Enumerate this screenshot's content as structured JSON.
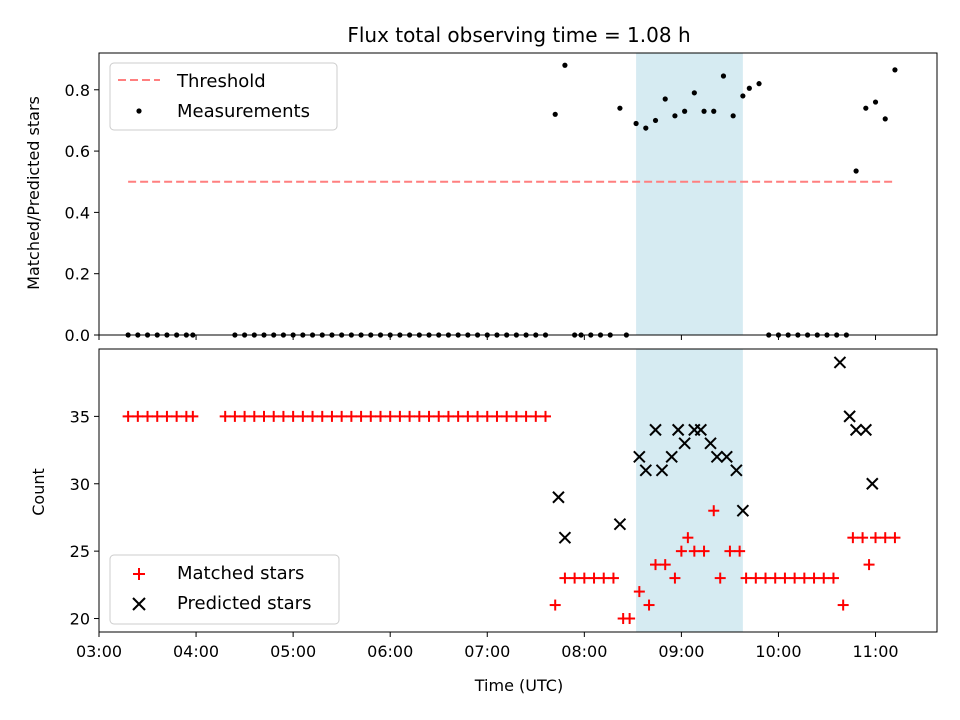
{
  "title": "Flux total observing time = 1.08 h",
  "colors": {
    "threshold": "#ff7f7f",
    "band": "#add8e6",
    "matched": "#ff0000",
    "predicted": "#000000",
    "measurement": "#000000"
  },
  "chart_data": [
    {
      "type": "scatter",
      "ylabel": "Matched/Predicted stars",
      "xlim": [
        "03:00",
        "11:38"
      ],
      "ylim": [
        0,
        0.92
      ],
      "yticks": [
        0.0,
        0.2,
        0.4,
        0.6,
        0.8
      ],
      "ytick_labels": [
        "0.0",
        "0.2",
        "0.4",
        "0.6",
        "0.8"
      ],
      "highlight_band": [
        "08:32",
        "09:38"
      ],
      "legend": {
        "position": "top-left",
        "entries": [
          "Threshold",
          "Measurements"
        ]
      },
      "series": [
        {
          "name": "Threshold",
          "style": "dashed-line",
          "x": [
            "03:18",
            "11:11"
          ],
          "values": [
            0.5,
            0.5
          ]
        },
        {
          "name": "Measurements",
          "style": "dot",
          "x": [
            "03:18",
            "03:24",
            "03:30",
            "03:36",
            "03:42",
            "03:48",
            "03:54",
            "03:58",
            "04:24",
            "04:30",
            "04:36",
            "04:42",
            "04:48",
            "04:54",
            "05:00",
            "05:06",
            "05:12",
            "05:18",
            "05:24",
            "05:30",
            "05:36",
            "05:42",
            "05:48",
            "05:54",
            "06:00",
            "06:06",
            "06:12",
            "06:18",
            "06:24",
            "06:30",
            "06:36",
            "06:42",
            "06:48",
            "06:54",
            "07:00",
            "07:06",
            "07:12",
            "07:18",
            "07:24",
            "07:30",
            "07:36",
            "07:42",
            "07:48",
            "07:54",
            "07:58",
            "08:04",
            "08:10",
            "08:16",
            "08:22",
            "08:26",
            "08:32",
            "08:38",
            "08:44",
            "08:50",
            "08:56",
            "09:02",
            "09:08",
            "09:14",
            "09:20",
            "09:26",
            "09:32",
            "09:38",
            "09:42",
            "09:48",
            "09:54",
            "10:00",
            "10:06",
            "10:12",
            "10:18",
            "10:24",
            "10:30",
            "10:36",
            "10:42",
            "10:48",
            "10:54",
            "11:00",
            "11:06",
            "11:12"
          ],
          "values": [
            0,
            0,
            0,
            0,
            0,
            0,
            0,
            0,
            0,
            0,
            0,
            0,
            0,
            0,
            0,
            0,
            0,
            0,
            0,
            0,
            0,
            0,
            0,
            0,
            0,
            0,
            0,
            0,
            0,
            0,
            0,
            0,
            0,
            0,
            0,
            0,
            0,
            0,
            0,
            0,
            0,
            0.72,
            0.88,
            0,
            0,
            0,
            0,
            0,
            0.74,
            0,
            0.69,
            0.675,
            0.7,
            0.77,
            0.715,
            0.73,
            0.79,
            0.73,
            0.73,
            0.845,
            0.715,
            0.78,
            0.805,
            0.82,
            0,
            0,
            0,
            0,
            0,
            0,
            0,
            0,
            0,
            0.535,
            0.74,
            0.76,
            0.705,
            0.865
          ]
        }
      ]
    },
    {
      "type": "scatter",
      "ylabel": "Count",
      "xlabel": "Time (UTC)",
      "xlim": [
        "03:00",
        "11:38"
      ],
      "ylim": [
        19,
        40
      ],
      "yticks": [
        20,
        25,
        30,
        35
      ],
      "ytick_labels": [
        "20",
        "25",
        "30",
        "35"
      ],
      "xticks": [
        "03:00",
        "04:00",
        "05:00",
        "06:00",
        "07:00",
        "08:00",
        "09:00",
        "10:00",
        "11:00"
      ],
      "highlight_band": [
        "08:32",
        "09:38"
      ],
      "legend": {
        "position": "bottom-left",
        "entries": [
          "Matched stars",
          "Predicted stars"
        ]
      },
      "series": [
        {
          "name": "Matched stars",
          "style": "plus",
          "x": [
            "03:18",
            "03:24",
            "03:30",
            "03:36",
            "03:42",
            "03:48",
            "03:54",
            "03:58",
            "04:18",
            "04:24",
            "04:30",
            "04:36",
            "04:42",
            "04:48",
            "04:54",
            "05:00",
            "05:06",
            "05:12",
            "05:18",
            "05:24",
            "05:30",
            "05:36",
            "05:42",
            "05:48",
            "05:54",
            "06:00",
            "06:06",
            "06:12",
            "06:18",
            "06:24",
            "06:30",
            "06:36",
            "06:42",
            "06:48",
            "06:54",
            "07:00",
            "07:06",
            "07:12",
            "07:18",
            "07:24",
            "07:30",
            "07:36",
            "07:42",
            "07:48",
            "07:54",
            "08:00",
            "08:06",
            "08:12",
            "08:18",
            "08:24",
            "08:28",
            "08:34",
            "08:40",
            "08:44",
            "08:50",
            "08:56",
            "09:00",
            "09:04",
            "09:08",
            "09:14",
            "09:20",
            "09:24",
            "09:30",
            "09:36",
            "09:40",
            "09:46",
            "09:52",
            "09:58",
            "10:04",
            "10:10",
            "10:16",
            "10:22",
            "10:28",
            "10:34",
            "10:40",
            "10:46",
            "10:52",
            "10:56",
            "11:00",
            "11:06",
            "11:12"
          ],
          "values": [
            35,
            35,
            35,
            35,
            35,
            35,
            35,
            35,
            35,
            35,
            35,
            35,
            35,
            35,
            35,
            35,
            35,
            35,
            35,
            35,
            35,
            35,
            35,
            35,
            35,
            35,
            35,
            35,
            35,
            35,
            35,
            35,
            35,
            35,
            35,
            35,
            35,
            35,
            35,
            35,
            35,
            35,
            21,
            23,
            23,
            23,
            23,
            23,
            23,
            20,
            20,
            22,
            21,
            24,
            24,
            23,
            25,
            26,
            25,
            25,
            28,
            23,
            25,
            25,
            23,
            23,
            23,
            23,
            23,
            23,
            23,
            23,
            23,
            23,
            21,
            26,
            26,
            24,
            26,
            26,
            26
          ]
        },
        {
          "name": "Predicted stars",
          "style": "x",
          "x": [
            "07:44",
            "07:48",
            "08:22",
            "08:34",
            "08:38",
            "08:44",
            "08:48",
            "08:54",
            "08:58",
            "09:02",
            "09:08",
            "09:12",
            "09:18",
            "09:22",
            "09:28",
            "09:34",
            "09:38",
            "10:38",
            "10:44",
            "10:48",
            "10:54",
            "10:58"
          ],
          "values": [
            29,
            26,
            27,
            32,
            31,
            34,
            31,
            32,
            34,
            33,
            34,
            34,
            33,
            32,
            32,
            31,
            28,
            39,
            35,
            34,
            34,
            30
          ]
        }
      ]
    }
  ]
}
